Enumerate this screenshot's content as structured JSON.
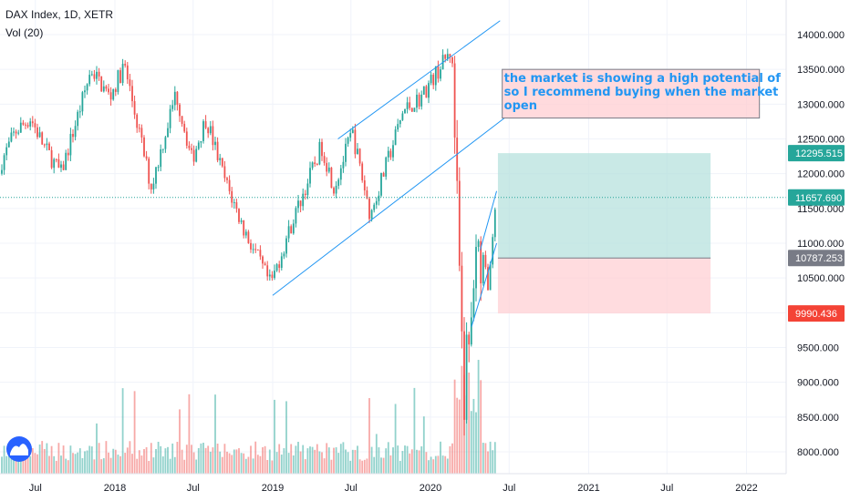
{
  "header": {
    "symbol": "DAX Index, 1D, XETR",
    "volume_label": "Vol (20)"
  },
  "annotation": {
    "lines": [
      "the market is showing a high potential of",
      "so I recommend buying when the market",
      "open"
    ]
  },
  "colors": {
    "up": "#26a69a",
    "down": "#ef5350",
    "channel": "#2196f3",
    "profit_zone": "#b2dfdb",
    "loss_zone": "#ffcdd2",
    "current_price_tag": "#26a69a",
    "stop_tag": "#f44336",
    "entry_tag": "#787b86",
    "note_box": "#ffcdd2"
  },
  "chart_data": {
    "type": "candlestick",
    "title": "DAX Index, 1D, XETR",
    "volume_indicator": "Vol (20)",
    "y_axis_ticks": [
      "14000.000",
      "13500.000",
      "13000.000",
      "12500.000",
      "12000.000",
      "11500.000",
      "11000.000",
      "10500.000",
      "10000.000",
      "9500.000",
      "9000.000",
      "8500.000",
      "8000.000"
    ],
    "y_tick_values": [
      14000,
      13500,
      13000,
      12500,
      12000,
      11500,
      11000,
      10500,
      10000,
      9500,
      9000,
      8500,
      8000
    ],
    "x_axis_ticks": [
      "Jul",
      "2018",
      "Jul",
      "2019",
      "Jul",
      "2020",
      "Jul",
      "2021",
      "Jul",
      "2022"
    ],
    "x_tick_dates": [
      "2017-07-01",
      "2018-01-01",
      "2018-07-01",
      "2019-01-01",
      "2019-07-01",
      "2020-01-01",
      "2020-07-01",
      "2021-01-01",
      "2021-07-01",
      "2022-01-01"
    ],
    "price_levels": {
      "target": {
        "label": "12295.515",
        "value": 12295.515
      },
      "current": {
        "label": "11657.690",
        "value": 11657.69
      },
      "entry": {
        "label": "10787.253",
        "value": 10787.253
      },
      "stop": {
        "label": "9990.436",
        "value": 9990.436
      }
    },
    "close_path": [
      [
        "2017-04-01",
        12000
      ],
      [
        "2017-05-15",
        12600
      ],
      [
        "2017-06-20",
        12800
      ],
      [
        "2017-07-20",
        12400
      ],
      [
        "2017-08-29",
        12000
      ],
      [
        "2017-10-15",
        13000
      ],
      [
        "2017-11-07",
        13500
      ],
      [
        "2017-12-20",
        13100
      ],
      [
        "2018-01-23",
        13560
      ],
      [
        "2018-03-26",
        11800
      ],
      [
        "2018-05-22",
        13170
      ],
      [
        "2018-06-28",
        12200
      ],
      [
        "2018-07-31",
        12800
      ],
      [
        "2018-09-10",
        11950
      ],
      [
        "2018-10-26",
        11200
      ],
      [
        "2018-12-27",
        10400
      ],
      [
        "2019-02-15",
        11300
      ],
      [
        "2019-04-24",
        12400
      ],
      [
        "2019-05-23",
        11800
      ],
      [
        "2019-07-04",
        12600
      ],
      [
        "2019-08-15",
        11400
      ],
      [
        "2019-10-30",
        12900
      ],
      [
        "2019-12-10",
        13100
      ],
      [
        "2020-01-20",
        13500
      ],
      [
        "2020-02-19",
        13780
      ],
      [
        "2020-03-01",
        11900
      ],
      [
        "2020-03-18",
        8440
      ],
      [
        "2020-03-27",
        9900
      ],
      [
        "2020-04-01",
        9500
      ],
      [
        "2020-04-15",
        10500
      ],
      [
        "2020-04-30",
        10800
      ],
      [
        "2020-05-15",
        10400
      ],
      [
        "2020-06-02",
        11650
      ]
    ],
    "channel_lines": [
      {
        "name": "upper",
        "points": [
          [
            "2019-06-01",
            12500
          ],
          [
            "2020-06-10",
            14200
          ]
        ]
      },
      {
        "name": "lower",
        "points": [
          [
            "2019-01-01",
            10250
          ],
          [
            "2020-06-20",
            12800
          ]
        ]
      },
      {
        "name": "rebound-upper",
        "points": [
          [
            "2020-04-25",
            10900
          ],
          [
            "2020-06-02",
            11750
          ]
        ]
      },
      {
        "name": "rebound-lower",
        "points": [
          [
            "2020-04-05",
            9800
          ],
          [
            "2020-06-02",
            11000
          ]
        ]
      }
    ],
    "position": {
      "start_date": "2020-06-05",
      "end_date": "2021-10-10",
      "target": 12295.515,
      "entry": 10787.253,
      "stop": 9990.436
    },
    "note_box": {
      "start_date": "2020-06-15",
      "end_date": "2022-01-31",
      "top": 13500,
      "bottom": 12800
    }
  }
}
